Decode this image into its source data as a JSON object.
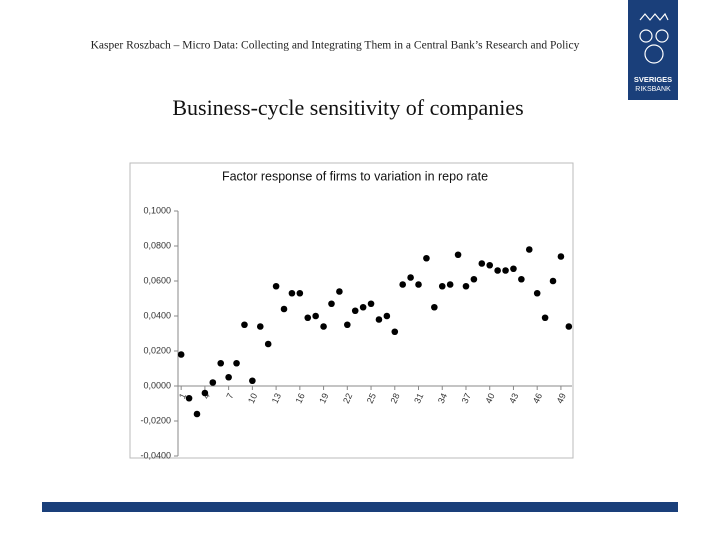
{
  "header": "Kasper Roszbach – Micro Data: Collecting and Integrating Them in a Central Bank’s Research and Policy",
  "slide_title": "Business-cycle sensitivity of companies",
  "logo": [
    "SVERIGES",
    "RIKSBANK"
  ],
  "chart_data": {
    "type": "scatter",
    "title": "Factor response of firms to variation in repo rate",
    "x": [
      1,
      2,
      3,
      4,
      5,
      6,
      7,
      8,
      9,
      10,
      11,
      12,
      13,
      14,
      15,
      16,
      17,
      18,
      19,
      20,
      21,
      22,
      23,
      24,
      25,
      26,
      27,
      28,
      29,
      30,
      31,
      32,
      33,
      34,
      35,
      36,
      37,
      38,
      39,
      40,
      41,
      42,
      43,
      44,
      45,
      46,
      47,
      48,
      49,
      50
    ],
    "values": [
      0.018,
      -0.007,
      -0.016,
      -0.004,
      0.002,
      0.013,
      0.005,
      0.013,
      0.035,
      0.003,
      0.034,
      0.024,
      0.057,
      0.044,
      0.053,
      0.053,
      0.039,
      0.04,
      0.034,
      0.047,
      0.054,
      0.035,
      0.043,
      0.045,
      0.047,
      0.038,
      0.04,
      0.031,
      0.058,
      0.062,
      0.058,
      0.073,
      0.045,
      0.057,
      0.058,
      0.075,
      0.057,
      0.061,
      0.07,
      0.069,
      0.066,
      0.066,
      0.067,
      0.061,
      0.078,
      0.053,
      0.039,
      0.06,
      0.074,
      0.034
    ],
    "color": "#000000",
    "xlim": [
      0.6,
      50.4
    ],
    "xticks": [
      1,
      4,
      7,
      10,
      13,
      16,
      19,
      22,
      25,
      28,
      31,
      34,
      37,
      40,
      43,
      46,
      49
    ],
    "ylim": [
      -0.04,
      0.1
    ],
    "yticks": [
      {
        "value": -0.04,
        "label": "-0,0400"
      },
      {
        "value": -0.02,
        "label": "-0,0200"
      },
      {
        "value": 0,
        "label": "0,0000"
      },
      {
        "value": 0.02,
        "label": "0,0200"
      },
      {
        "value": 0.04,
        "label": "0,0400"
      },
      {
        "value": 0.06,
        "label": "0,0600"
      },
      {
        "value": 0.08,
        "label": "0,0800"
      },
      {
        "value": 0.1,
        "label": "0,1000"
      }
    ],
    "grid": false
  }
}
